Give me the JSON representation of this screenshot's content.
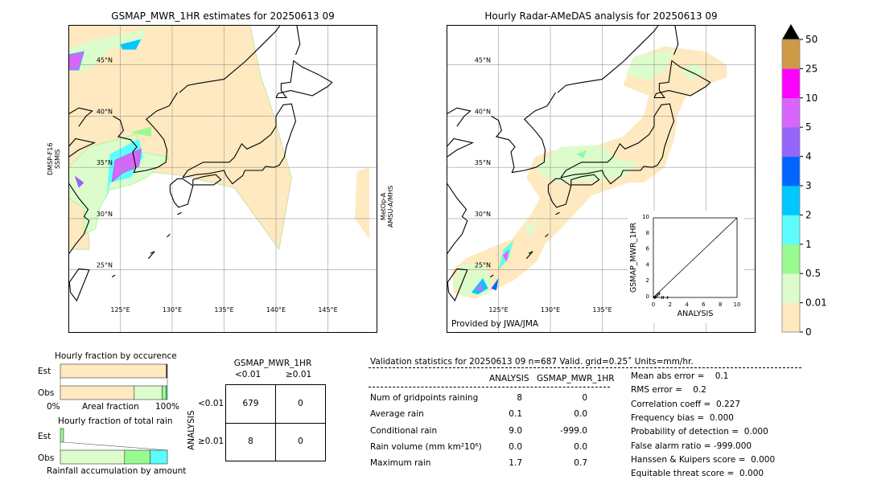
{
  "left_map": {
    "title": "GSMAP_MWR_1HR estimates for 20250613 09",
    "sensor_left": [
      "DMSP-F16",
      "SSMIS"
    ],
    "sensor_right": [
      "MetOp-A",
      "AMSU-A/MHS"
    ],
    "lat_labels": [
      "45°N",
      "40°N",
      "35°N",
      "30°N",
      "25°N"
    ],
    "lon_labels": [
      "125°E",
      "130°E",
      "135°E",
      "140°E",
      "145°E"
    ]
  },
  "right_map": {
    "title": "Hourly Radar-AMeDAS analysis for 20250613 09",
    "lat_labels": [
      "45°N",
      "40°N",
      "35°N",
      "30°N",
      "25°N"
    ],
    "lon_labels": [
      "125°E",
      "130°E",
      "135°E"
    ],
    "credit": "Provided by JWA/JMA"
  },
  "colorbar": {
    "ticks": [
      "0",
      "0.01",
      "0.5",
      "1",
      "2",
      "3",
      "4",
      "5",
      "10",
      "25",
      "50"
    ],
    "colors": [
      "#fee9c0",
      "#ddfccb",
      "#99fb8f",
      "#5efcfc",
      "#00c7fd",
      "#0065ff",
      "#9565fb",
      "#d866fb",
      "#fe00fe",
      "#cd9a45"
    ],
    "extend_color": "#000000"
  },
  "scatter_inset": {
    "type": "scatter",
    "xlabel": "ANALYSIS",
    "ylabel": "GSMAP_MWR_1HR",
    "xlim": [
      0,
      10
    ],
    "ylim": [
      0,
      10
    ],
    "x_ticks": [
      "0",
      "2",
      "4",
      "6",
      "8",
      "10"
    ],
    "y_ticks": [
      "0",
      "2",
      "4",
      "6",
      "8",
      "10"
    ]
  },
  "chart_data": {
    "type": "bar",
    "occurrence": {
      "title": "Hourly fraction by occurence",
      "xlabel": "Areal fraction",
      "x_min_label": "0%",
      "x_max_label": "100%",
      "rows": [
        "Est",
        "Obs"
      ],
      "est_fractions": [
        0.99,
        0.0,
        0.0,
        0.01
      ],
      "obs_fractions": [
        0.69,
        0.26,
        0.04,
        0.01
      ]
    },
    "total_rain": {
      "title": "Hourly fraction of total rain",
      "xlabel": "Rainfall accumulation by amount",
      "rows": [
        "Est",
        "Obs"
      ],
      "est_fractions": [
        0.03
      ],
      "obs_fractions": [
        0.6,
        0.24,
        0.16
      ]
    }
  },
  "contingency": {
    "title": "GSMAP_MWR_1HR",
    "col_headers": [
      "<0.01",
      "≥0.01"
    ],
    "row_label": "ANALYSIS",
    "row_headers": [
      "<0.01",
      "≥0.01"
    ],
    "cells": [
      [
        "679",
        "0"
      ],
      [
        "8",
        "0"
      ]
    ]
  },
  "stats": {
    "header": "Validation statistics for 20250613 09  n=687 Valid. grid=0.25˚ Units=mm/hr.",
    "col_analysis": "ANALYSIS",
    "col_est": "GSMAP_MWR_1HR",
    "rows": [
      {
        "label": "Num of gridpoints raining",
        "analysis": "8",
        "est": "0"
      },
      {
        "label": "Average rain",
        "analysis": "0.1",
        "est": "0.0"
      },
      {
        "label": "Conditional rain",
        "analysis": "9.0",
        "est": "-999.0"
      },
      {
        "label": "Rain volume (mm km²10⁶)",
        "analysis": "0.0",
        "est": "0.0"
      },
      {
        "label": "Maximum rain",
        "analysis": "1.7",
        "est": "0.7"
      }
    ],
    "scores": [
      "Mean abs error =    0.1",
      "RMS error =    0.2",
      "Correlation coeff =  0.227",
      "Frequency bias =  0.000",
      "Probability of detection =  0.000",
      "False alarm ratio = -999.000",
      "Hanssen & Kuipers score =  0.000",
      "Equitable threat score =  0.000"
    ]
  }
}
